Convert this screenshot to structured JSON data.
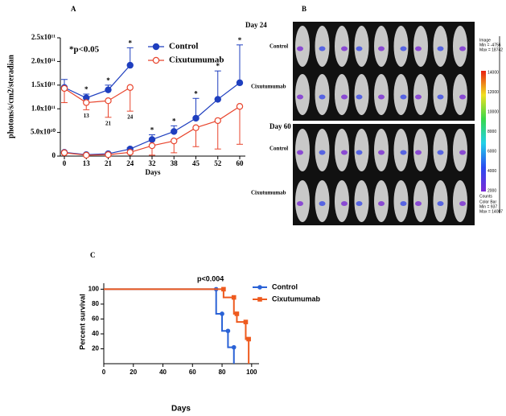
{
  "chart_data": [
    {
      "type": "line",
      "panel": "A",
      "ylabel": "photons/s/cm2/steradian",
      "xlabel": "Days",
      "categories": [
        "0",
        "13",
        "21",
        "24",
        "32",
        "38",
        "45",
        "52",
        "60"
      ],
      "ylim": [
        0,
        250000000000
      ],
      "yticks": [
        0,
        {
          "value": 50000000000,
          "label": "5.0x10¹⁰"
        },
        {
          "value": 100000000000,
          "label": "1.0x10¹¹"
        },
        {
          "value": 150000000000,
          "label": "1.5x10¹¹"
        },
        {
          "value": 200000000000,
          "label": "2.0x10¹¹"
        },
        {
          "value": 250000000000,
          "label": "2.5x10¹¹"
        }
      ],
      "annotation": "*p<0.05",
      "significance_label": "*",
      "significance_categories": [
        1,
        2,
        3,
        4,
        5,
        6,
        7,
        8
      ],
      "series": [
        {
          "name": "Control",
          "color": "#1f3fbf",
          "marker": "filled",
          "error_direction": "up",
          "values": [
            145000000000,
            123000000000,
            140000000000,
            192000000000,
            null,
            null,
            null,
            null,
            null
          ],
          "errors": [
            17000000000,
            8000000000,
            10000000000,
            37000000000,
            null,
            null,
            null,
            null,
            null
          ],
          "values_2": [
            8000000000,
            3000000000,
            5000000000,
            15000000000,
            35000000000,
            52000000000,
            80000000000,
            120000000000,
            155000000000
          ],
          "errors_2": [
            2000000000,
            1000000000,
            2000000000,
            3000000000,
            10000000000,
            12000000000,
            42000000000,
            60000000000,
            80000000000
          ]
        },
        {
          "name": "Cixutumumab",
          "color": "#e8442c",
          "marker": "open",
          "error_direction": "down",
          "values": [
            143000000000,
            113000000000,
            117000000000,
            145000000000,
            null,
            null,
            null,
            null,
            null
          ],
          "errors": [
            30000000000,
            15000000000,
            35000000000,
            50000000000,
            null,
            null,
            null,
            null,
            null
          ],
          "values_2": [
            7000000000,
            2000000000,
            3000000000,
            8000000000,
            22000000000,
            32000000000,
            60000000000,
            75000000000,
            105000000000
          ],
          "errors_2": [
            2000000000,
            1000000000,
            1000000000,
            3000000000,
            20000000000,
            25000000000,
            40000000000,
            60000000000,
            80000000000
          ],
          "day_labels": [
            null,
            "13",
            "21",
            "24",
            null,
            null,
            null,
            null,
            null
          ]
        }
      ]
    },
    {
      "type": "survival",
      "panel": "C",
      "ylabel": "Percent survival",
      "xlabel": "Days",
      "annotation": "p<0.004",
      "xlim": [
        0,
        105
      ],
      "xticks": [
        0,
        20,
        40,
        60,
        80,
        100
      ],
      "ylim": [
        0,
        108
      ],
      "yticks": [
        20,
        40,
        60,
        80,
        100
      ],
      "series": [
        {
          "name": "Control",
          "color": "#2a62d6",
          "marker": "circle",
          "x": [
            0,
            76,
            80,
            84,
            88
          ],
          "values": [
            100,
            67,
            44,
            22,
            0
          ]
        },
        {
          "name": "Cixutumumab",
          "color": "#ee5a1e",
          "marker": "square",
          "x": [
            0,
            81,
            88,
            90,
            96,
            98
          ],
          "values": [
            100,
            89,
            67,
            56,
            33,
            0
          ]
        }
      ]
    }
  ],
  "image_panel": {
    "panel": "B",
    "day_a": "Day 24",
    "day_b": "Day 60",
    "row_labels": [
      "Control",
      "Cixutumumab",
      "Control",
      "Cixutumumab"
    ],
    "image_info": [
      "Image",
      "Min = -4756",
      "Max = 18742"
    ],
    "colorbar_ticks": [
      "14000",
      "12000",
      "10000",
      "8000",
      "6000",
      "4000",
      "2000"
    ],
    "colorbar_unit": "Counts",
    "colorbar_info": [
      "Color Bar",
      "Min = 937",
      "Max = 14007"
    ]
  }
}
